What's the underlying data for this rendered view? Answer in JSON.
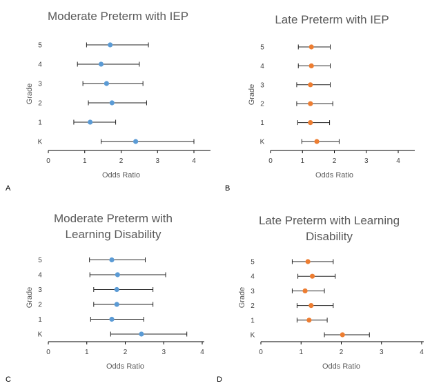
{
  "chart_data": [
    {
      "type": "scatter",
      "panel": "A",
      "title": [
        "Moderate Preterm with IEP"
      ],
      "xlabel": "Odds Ratio",
      "ylabel": "Grade",
      "xlim": [
        0,
        4.5
      ],
      "xticks": [
        0,
        1,
        2,
        3,
        4
      ],
      "categories": [
        "K",
        "1",
        "2",
        "3",
        "4",
        "5"
      ],
      "point_color": "#5B9BD5",
      "values": [
        2.4,
        1.15,
        1.75,
        1.6,
        1.45,
        1.7
      ],
      "ci_low": [
        1.45,
        0.7,
        1.1,
        0.95,
        0.8,
        1.05
      ],
      "ci_high": [
        4.0,
        1.85,
        2.7,
        2.6,
        2.5,
        2.75
      ],
      "grid": false
    },
    {
      "type": "scatter",
      "panel": "B",
      "title": [
        "Late Preterm with IEP"
      ],
      "xlabel": "Odds Ratio",
      "ylabel": "Grade",
      "xlim": [
        0,
        4.5
      ],
      "xticks": [
        0,
        1,
        2,
        3,
        4
      ],
      "categories": [
        "K",
        "1",
        "2",
        "3",
        "4",
        "5"
      ],
      "point_color": "#ED7D31",
      "values": [
        1.45,
        1.25,
        1.25,
        1.25,
        1.28,
        1.28
      ],
      "ci_low": [
        0.98,
        0.85,
        0.82,
        0.82,
        0.87,
        0.87
      ],
      "ci_high": [
        2.15,
        1.85,
        1.95,
        1.87,
        1.87,
        1.87
      ],
      "grid": false
    },
    {
      "type": "scatter",
      "panel": "C",
      "title": [
        "Moderate Preterm with",
        "Learning Disability"
      ],
      "xlabel": "Odds Ratio",
      "ylabel": "Grade",
      "xlim": [
        0,
        4
      ],
      "xticks": [
        0,
        1,
        2,
        3,
        4
      ],
      "categories": [
        "K",
        "1",
        "2",
        "3",
        "4",
        "5"
      ],
      "point_color": "#5B9BD5",
      "values": [
        2.42,
        1.65,
        1.78,
        1.78,
        1.8,
        1.65
      ],
      "ci_low": [
        1.62,
        1.1,
        1.18,
        1.18,
        1.08,
        1.07
      ],
      "ci_high": [
        3.6,
        2.48,
        2.72,
        2.72,
        3.05,
        2.52
      ],
      "grid": false
    },
    {
      "type": "scatter",
      "panel": "D",
      "title": [
        "Late Preterm with Learning",
        "Disability"
      ],
      "xlabel": "Odds Ratio",
      "ylabel": "Grade",
      "xlim": [
        0,
        4
      ],
      "xticks": [
        0,
        1,
        2,
        3,
        4
      ],
      "categories": [
        "K",
        "1",
        "2",
        "3",
        "4",
        "5"
      ],
      "point_color": "#ED7D31",
      "values": [
        2.03,
        1.2,
        1.25,
        1.1,
        1.28,
        1.17
      ],
      "ci_low": [
        1.58,
        0.9,
        0.9,
        0.78,
        0.92,
        0.78
      ],
      "ci_high": [
        2.7,
        1.65,
        1.8,
        1.58,
        1.85,
        1.8
      ],
      "grid": false
    }
  ]
}
